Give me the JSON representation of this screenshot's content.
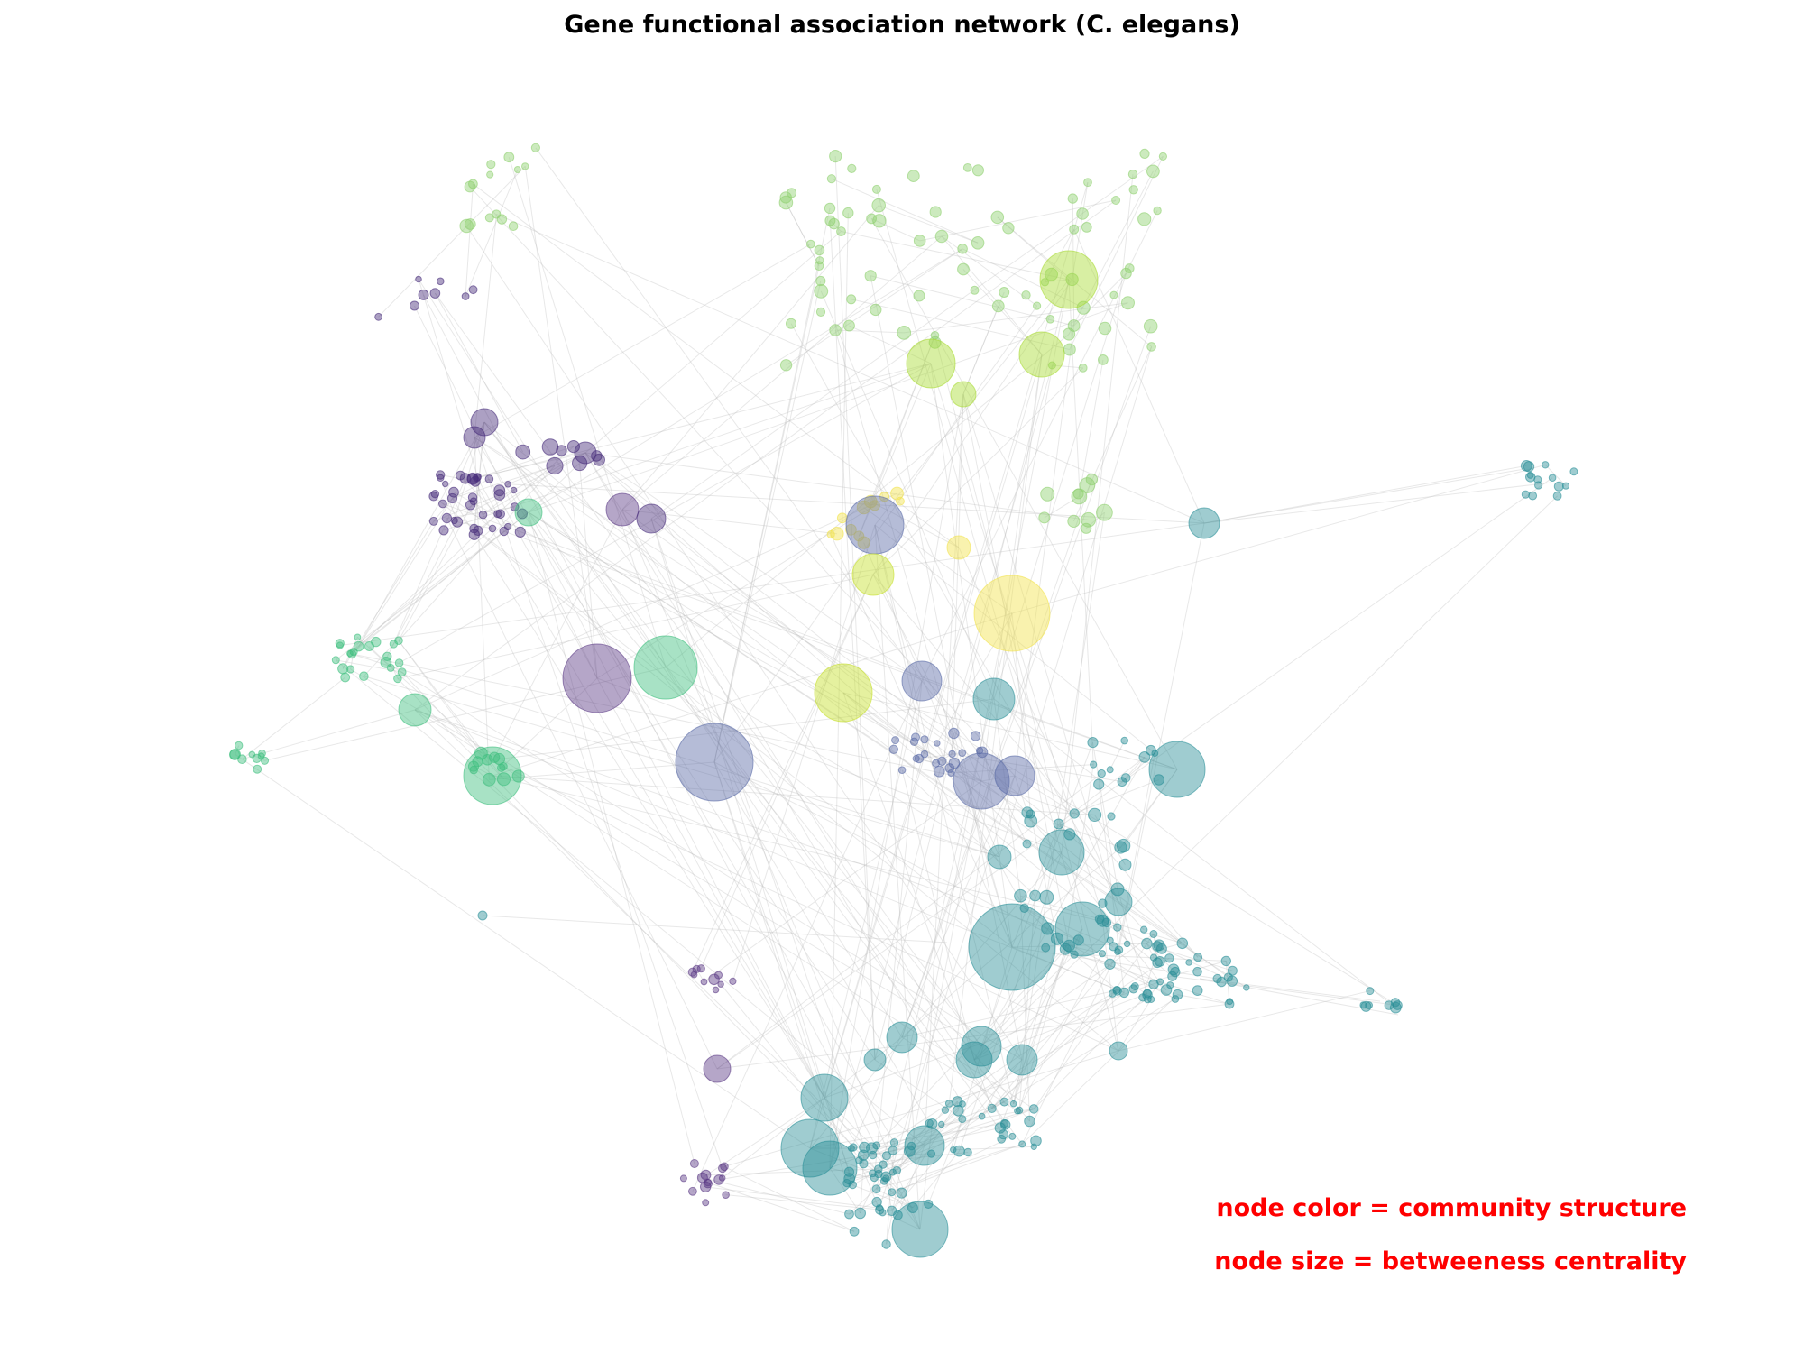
{
  "title": "Gene functional association network (C. elegans)",
  "annotations": {
    "color_note": "node color = community structure",
    "size_note": "node size = betweeness centrality"
  },
  "colors": {
    "edge": "#bdbdbd",
    "communities": {
      "dark_purple": "#472d7b",
      "purple": "#5b3a86",
      "slate_blue": "#5a6aa6",
      "teal": "#2a8f97",
      "dark_teal": "#1f7480",
      "green": "#3fbf7f",
      "light_green": "#8fd16f",
      "lime": "#a8db34",
      "yellow_green": "#c6df2a",
      "yellow": "#f2e34c"
    }
  }
}
